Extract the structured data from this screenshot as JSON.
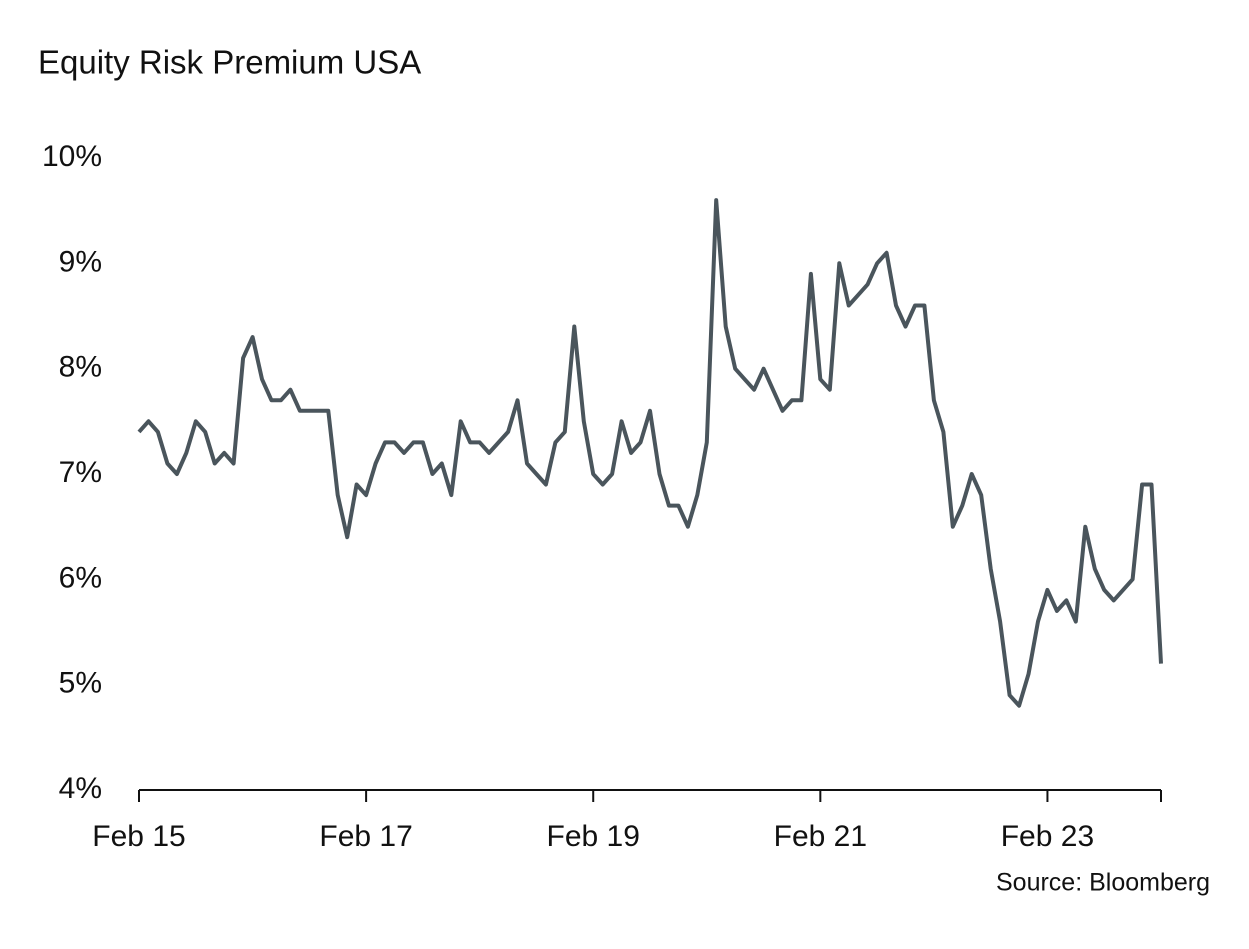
{
  "chart_data": {
    "type": "line",
    "title": "Equity Risk Premium USA",
    "source": "Source: Bloomberg",
    "x": [
      "2015-02",
      "2015-03",
      "2015-04",
      "2015-05",
      "2015-06",
      "2015-07",
      "2015-08",
      "2015-09",
      "2015-10",
      "2015-11",
      "2015-12",
      "2016-01",
      "2016-02",
      "2016-03",
      "2016-04",
      "2016-05",
      "2016-06",
      "2016-07",
      "2016-08",
      "2016-09",
      "2016-10",
      "2016-11",
      "2016-12",
      "2017-01",
      "2017-02",
      "2017-03",
      "2017-04",
      "2017-05",
      "2017-06",
      "2017-07",
      "2017-08",
      "2017-09",
      "2017-10",
      "2017-11",
      "2017-12",
      "2018-01",
      "2018-02",
      "2018-03",
      "2018-04",
      "2018-05",
      "2018-06",
      "2018-07",
      "2018-08",
      "2018-09",
      "2018-10",
      "2018-11",
      "2018-12",
      "2019-01",
      "2019-02",
      "2019-03",
      "2019-04",
      "2019-05",
      "2019-06",
      "2019-07",
      "2019-08",
      "2019-09",
      "2019-10",
      "2019-11",
      "2019-12",
      "2020-01",
      "2020-02",
      "2020-03",
      "2020-04",
      "2020-05",
      "2020-06",
      "2020-07",
      "2020-08",
      "2020-09",
      "2020-10",
      "2020-11",
      "2020-12",
      "2021-01",
      "2021-02",
      "2021-03",
      "2021-04",
      "2021-05",
      "2021-06",
      "2021-07",
      "2021-08",
      "2021-09",
      "2021-10",
      "2021-11",
      "2021-12",
      "2022-01",
      "2022-02",
      "2022-03",
      "2022-04",
      "2022-05",
      "2022-06",
      "2022-07",
      "2022-08",
      "2022-09",
      "2022-10",
      "2022-11",
      "2022-12",
      "2023-01",
      "2023-02",
      "2023-03",
      "2023-04",
      "2023-05",
      "2023-06",
      "2023-07",
      "2023-08",
      "2023-09",
      "2023-10",
      "2023-11",
      "2023-12",
      "2024-01",
      "2024-02"
    ],
    "series": [
      {
        "name": "Equity Risk Premium",
        "color": "#4a555c",
        "values": [
          7.4,
          7.5,
          7.4,
          7.1,
          7.0,
          7.2,
          7.5,
          7.4,
          7.1,
          7.2,
          7.1,
          8.1,
          8.3,
          7.9,
          7.7,
          7.7,
          7.8,
          7.6,
          7.6,
          7.6,
          7.6,
          6.8,
          6.4,
          6.9,
          6.8,
          7.1,
          7.3,
          7.3,
          7.2,
          7.3,
          7.3,
          7.0,
          7.1,
          6.8,
          7.5,
          7.3,
          7.3,
          7.2,
          7.3,
          7.4,
          7.7,
          7.1,
          7.0,
          6.9,
          7.3,
          7.4,
          8.4,
          7.5,
          7.0,
          6.9,
          7.0,
          7.5,
          7.2,
          7.3,
          7.6,
          7.0,
          6.7,
          6.7,
          6.5,
          6.8,
          7.3,
          9.6,
          8.4,
          8.0,
          7.9,
          7.8,
          8.0,
          7.8,
          7.6,
          7.7,
          7.7,
          8.9,
          7.9,
          7.8,
          9.0,
          8.6,
          8.7,
          8.8,
          9.0,
          9.1,
          8.6,
          8.4,
          8.6,
          8.6,
          7.7,
          7.4,
          6.5,
          6.7,
          7.0,
          6.8,
          6.1,
          5.6,
          4.9,
          4.8,
          5.1,
          5.6,
          5.9,
          5.7,
          5.8,
          5.6,
          6.5,
          6.1,
          5.9,
          5.8,
          5.9,
          6.0,
          6.9,
          6.9,
          5.2
        ]
      }
    ],
    "xlim": [
      "2015-02",
      "2024-02"
    ],
    "xticks": [
      {
        "value": "2015-02",
        "label": "Feb 15"
      },
      {
        "value": "2017-02",
        "label": "Feb 17"
      },
      {
        "value": "2019-02",
        "label": "Feb 19"
      },
      {
        "value": "2021-02",
        "label": "Feb 21"
      },
      {
        "value": "2023-02",
        "label": "Feb 23"
      },
      {
        "value": "2024-02",
        "label": null
      }
    ],
    "ylim": [
      4,
      10
    ],
    "yticks": [
      {
        "value": 4,
        "label": "4%"
      },
      {
        "value": 5,
        "label": "5%"
      },
      {
        "value": 6,
        "label": "6%"
      },
      {
        "value": 7,
        "label": "7%"
      },
      {
        "value": 8,
        "label": "8%"
      },
      {
        "value": 9,
        "label": "9%"
      },
      {
        "value": 10,
        "label": "10%"
      }
    ],
    "grid": false
  }
}
